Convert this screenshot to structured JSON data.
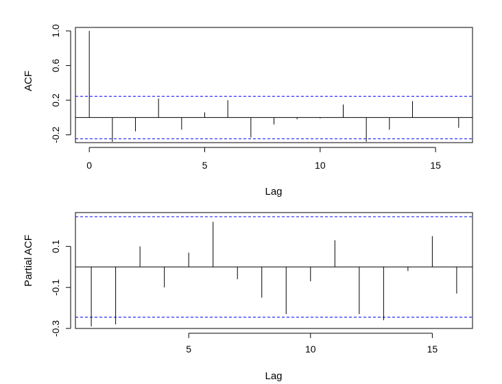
{
  "chart_data": [
    {
      "type": "bar",
      "xlabel": "Lag",
      "ylabel": "ACF",
      "xlim": [
        -0.6,
        16.6
      ],
      "ylim": [
        -0.29,
        1.04
      ],
      "x_ticks": [
        0,
        5,
        10,
        15
      ],
      "y_ticks": [
        -0.2,
        0.2,
        0.6,
        1.0
      ],
      "y_tick_labels": [
        "-0.2",
        "0.2",
        "0.6",
        "1.0"
      ],
      "confidence_bound": 0.245,
      "confidence_color": "#0000ff",
      "zero_line": true,
      "lags": [
        0,
        1,
        2,
        3,
        4,
        5,
        6,
        7,
        8,
        9,
        10,
        11,
        12,
        13,
        14,
        15,
        16
      ],
      "values": [
        1.0,
        -0.28,
        -0.16,
        0.22,
        -0.14,
        0.06,
        0.2,
        -0.23,
        -0.08,
        -0.02,
        -0.01,
        0.15,
        -0.28,
        -0.14,
        0.19,
        0.0,
        -0.12
      ]
    },
    {
      "type": "bar",
      "xlabel": "Lag",
      "ylabel": "Partial ACF",
      "xlim": [
        0.35,
        16.65
      ],
      "ylim": [
        -0.3,
        0.265
      ],
      "x_ticks": [
        5,
        10,
        15
      ],
      "y_ticks": [
        -0.3,
        -0.1,
        0.1
      ],
      "y_tick_labels": [
        "-0.3",
        "-0.1",
        "0.1"
      ],
      "confidence_bound": 0.245,
      "confidence_color": "#0000ff",
      "zero_line": true,
      "lags": [
        1,
        2,
        3,
        4,
        5,
        6,
        7,
        8,
        9,
        10,
        11,
        12,
        13,
        14,
        15,
        16
      ],
      "values": [
        -0.29,
        -0.28,
        0.1,
        -0.1,
        0.07,
        0.22,
        -0.06,
        -0.15,
        -0.23,
        -0.07,
        0.13,
        -0.23,
        -0.26,
        -0.02,
        0.15,
        -0.13
      ]
    }
  ]
}
